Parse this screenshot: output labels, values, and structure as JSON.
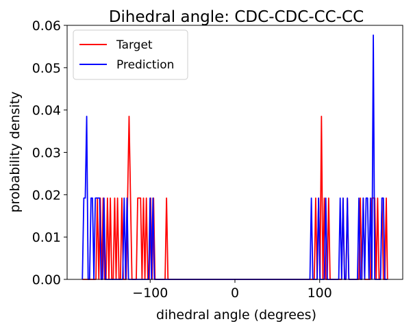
{
  "chart_data": {
    "type": "line",
    "title": "Dihedral angle: CDC-CDC-CC-CC",
    "xlabel": "dihedral angle (degrees)",
    "ylabel": "probability density",
    "xlim": [
      -180,
      180
    ],
    "ylim": [
      0,
      0.06
    ],
    "xticks": [
      -100,
      0,
      100
    ],
    "xtick_labels": [
      "−100",
      "0",
      "100"
    ],
    "yticks": [
      0,
      0.01,
      0.02,
      0.03,
      0.04,
      0.05,
      0.06
    ],
    "ytick_labels": [
      "0.00",
      "0.01",
      "0.02",
      "0.03",
      "0.04",
      "0.05",
      "0.06"
    ],
    "legend_position": "upper-left",
    "grid": false,
    "series": [
      {
        "name": "Target",
        "color": "#ff0000",
        "x": [
          -180,
          -164,
          -162.3,
          -160.6,
          -158.9,
          -157.2,
          -155.5,
          -153.8,
          -152.1,
          -150.4,
          -148.7,
          -147,
          -145.3,
          -143.6,
          -141.9,
          -140.2,
          -138.5,
          -136.8,
          -135.1,
          -133.4,
          -131.7,
          -128.3,
          -126.6,
          -124.9,
          -123.2,
          -121.5,
          -119.8,
          -118.1,
          -116.4,
          -114.7,
          -113,
          -111.3,
          -109.6,
          -107.9,
          -106.2,
          -104.5,
          -102.8,
          -101.1,
          -99.4,
          -97.7,
          -96,
          -94.3,
          -82.4,
          -80.7,
          -79,
          -77.3,
          93.6,
          95.3,
          97,
          98.7,
          100.4,
          102.1,
          103.8,
          105.5,
          107.2,
          108.9,
          110.6,
          112.3,
          125.9,
          127.6,
          129.3,
          131,
          132.7,
          134.4,
          146.3,
          148,
          149.7,
          151.4,
          153.1,
          154.8,
          156.5,
          158.2,
          159.9,
          161.6,
          163.3,
          165,
          166.7,
          168.4,
          170.1,
          171.8,
          173.5,
          175.2,
          176.9,
          178.6,
          180
        ],
        "y": [
          0,
          0,
          0.0192,
          0,
          0.0192,
          0,
          0.0192,
          0,
          0,
          0.0192,
          0,
          0.0192,
          0,
          0,
          0.0192,
          0,
          0.0192,
          0,
          0,
          0.0192,
          0,
          0,
          0.0192,
          0.0385,
          0.0192,
          0,
          0,
          0,
          0,
          0.0192,
          0.0192,
          0.0192,
          0,
          0.0192,
          0,
          0.0192,
          0,
          0,
          0.0192,
          0,
          0.0192,
          0,
          0,
          0.0192,
          0,
          0,
          0,
          0.0192,
          0,
          0.0192,
          0,
          0.0385,
          0,
          0.0192,
          0,
          0,
          0.0192,
          0,
          0,
          0.0192,
          0,
          0,
          0.0192,
          0,
          0,
          0.0192,
          0,
          0.0192,
          0,
          0,
          0,
          0,
          0,
          0.0192,
          0.0192,
          0.0192,
          0,
          0.0192,
          0,
          0,
          0.0192,
          0,
          0,
          0.0192,
          0
        ]
      },
      {
        "name": "Prediction",
        "color": "#0000ff",
        "x": [
          -180,
          -178.3,
          -176.6,
          -174.9,
          -173.2,
          -171.5,
          -169.8,
          -168.1,
          -166.4,
          -164.7,
          -163,
          -161.3,
          -159.6,
          -157.9,
          -156.2,
          -154.5,
          -152.8,
          -151.1,
          -149.4,
          -147.7,
          -146,
          -144.3,
          -142.6,
          -140.9,
          -139.2,
          -137.5,
          -135.8,
          -134.1,
          -132.4,
          -130.7,
          -129,
          -127.3,
          -125.6,
          -123.9,
          -122.2,
          -120.5,
          -118.8,
          -117.1,
          -115.4,
          -113.7,
          -112,
          -110.3,
          -108.6,
          -106.9,
          -105.2,
          -103.5,
          -101.8,
          -100.1,
          -98.4,
          -96.7,
          -95,
          -93.3,
          88.5,
          90.2,
          91.9,
          93.6,
          95.3,
          97,
          98.7,
          100.4,
          102.1,
          103.8,
          105.5,
          107.2,
          108.9,
          110.6,
          112.3,
          114,
          115.7,
          117.4,
          119.1,
          120.8,
          122.5,
          124.2,
          125.9,
          127.6,
          129.3,
          131,
          132.7,
          134.4,
          136.1,
          137.8,
          139.5,
          141.2,
          142.9,
          144.6,
          146.3,
          148,
          149.7,
          151.4,
          153.1,
          154.8,
          156.5,
          158.2,
          159.9,
          161.6,
          163.3,
          165,
          166.7,
          168.4,
          170.1,
          171.8,
          173.5,
          175.2,
          176.9,
          178.6,
          180
        ],
        "y": [
          0,
          0.0192,
          0.0192,
          0.0385,
          0,
          0,
          0.0192,
          0.0192,
          0,
          0.0192,
          0.0192,
          0.0192,
          0.0192,
          0,
          0,
          0.0192,
          0,
          0,
          0,
          0,
          0,
          0,
          0,
          0,
          0,
          0,
          0,
          0,
          0,
          0.0192,
          0,
          0.0192,
          0,
          0,
          0,
          0,
          0,
          0,
          0,
          0,
          0,
          0,
          0,
          0,
          0,
          0,
          0,
          0.0192,
          0,
          0.0192,
          0,
          0,
          0,
          0.0192,
          0,
          0,
          0,
          0,
          0.0192,
          0,
          0,
          0,
          0,
          0.0192,
          0,
          0,
          0,
          0,
          0,
          0,
          0,
          0,
          0,
          0.0192,
          0,
          0.0192,
          0,
          0,
          0.0192,
          0,
          0,
          0,
          0,
          0,
          0,
          0,
          0.0192,
          0,
          0,
          0.0192,
          0,
          0.0192,
          0.0192,
          0,
          0.0192,
          0,
          0.0577,
          0,
          0,
          0,
          0,
          0,
          0.0192,
          0.0192,
          0,
          0,
          0
        ]
      }
    ]
  }
}
